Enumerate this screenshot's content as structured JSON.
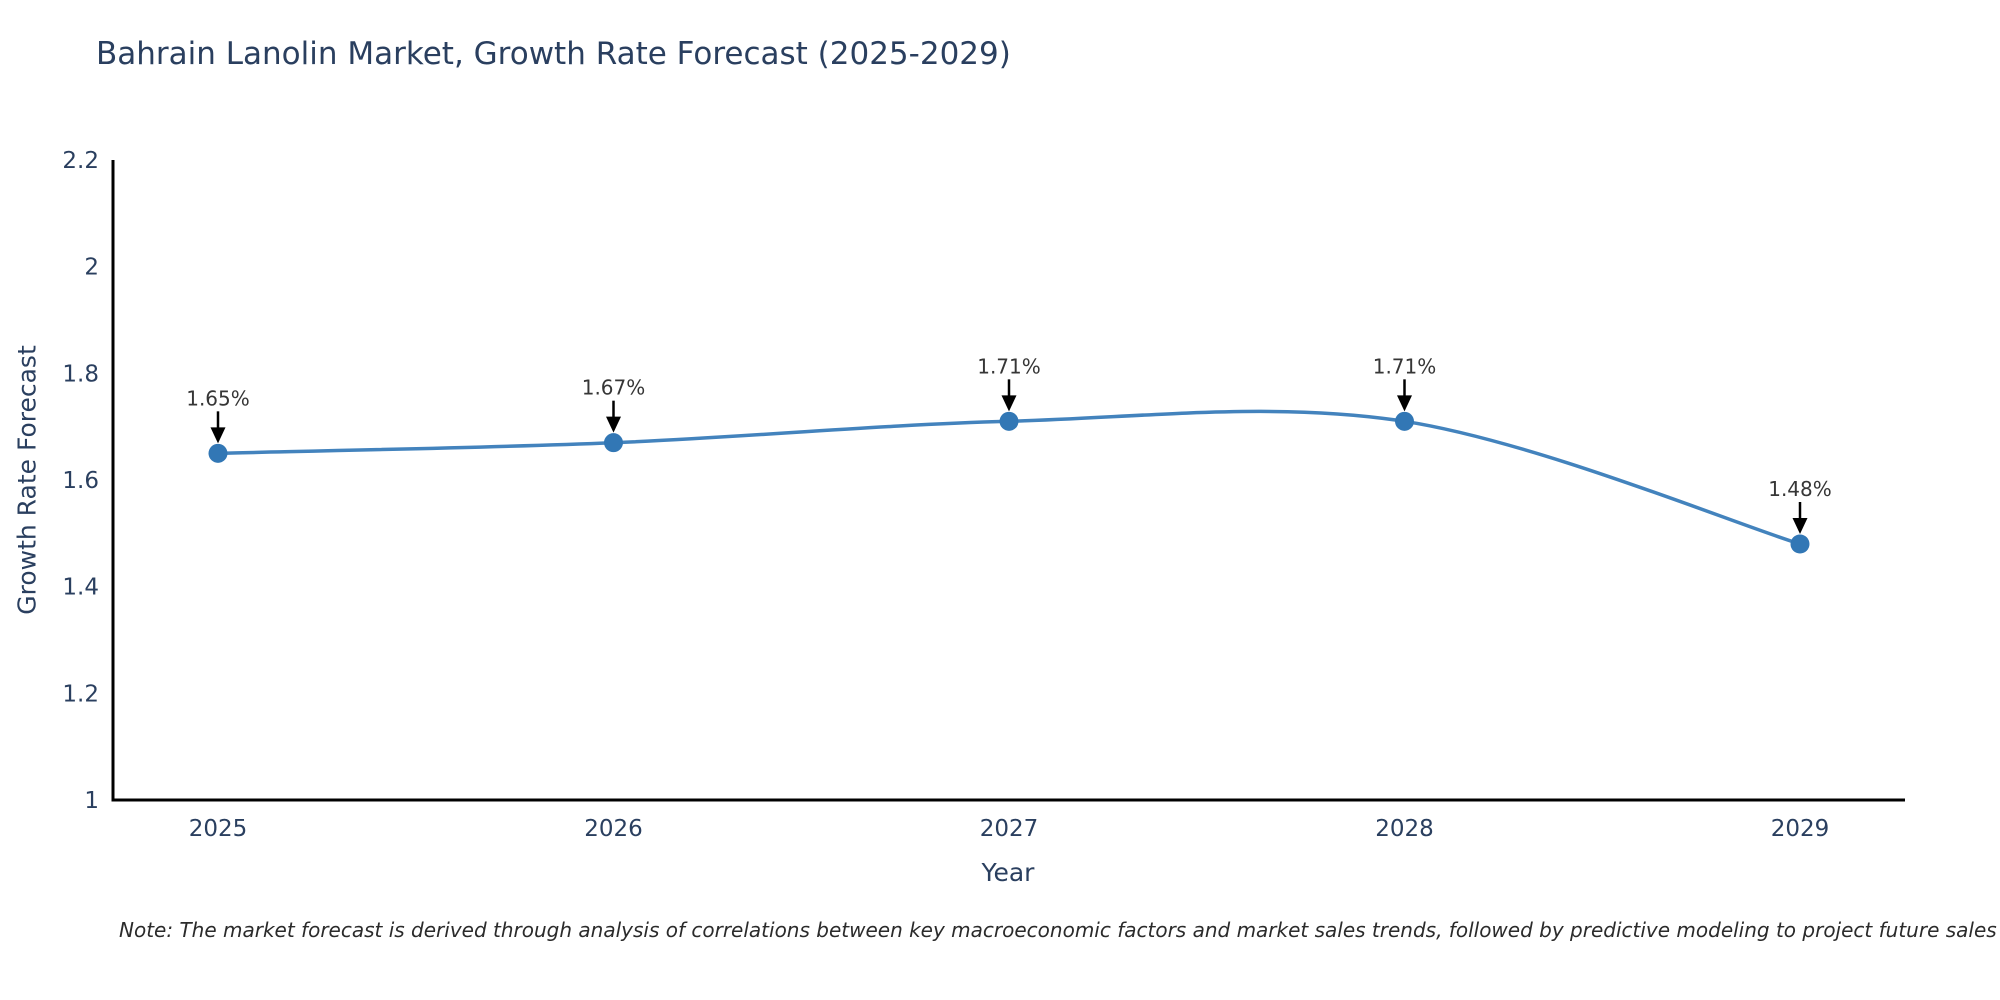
{
  "page": {
    "background": "#ffffff"
  },
  "chart": {
    "title": "Bahrain Lanolin Market, Growth Rate Forecast (2025-2029)",
    "xlabel": "Year",
    "ylabel": "Growth Rate Forecast",
    "note": "Note: The market forecast is derived through analysis of correlations between key macroeconomic factors and market sales trends, followed by predictive modeling to project future sales"
  },
  "chart_data": {
    "type": "line",
    "title": "Bahrain Lanolin Market, Growth Rate Forecast (2025-2029)",
    "xlabel": "Year",
    "ylabel": "Growth Rate Forecast",
    "categories": [
      "2025",
      "2026",
      "2027",
      "2028",
      "2029"
    ],
    "values": [
      1.65,
      1.67,
      1.71,
      1.71,
      1.48
    ],
    "point_labels": [
      "1.65%",
      "1.67%",
      "1.71%",
      "1.71%",
      "1.48%"
    ],
    "ylim": [
      1,
      2.2
    ],
    "yticks": [
      1,
      1.2,
      1.4,
      1.6,
      1.8,
      2,
      2.2
    ],
    "ytick_labels": [
      "1",
      "1.2",
      "1.4",
      "1.6",
      "1.8",
      "2",
      "2.2"
    ],
    "line_shape": "spline",
    "grid": false,
    "legend": false,
    "colors": {
      "line": "#4383bd",
      "marker": "#3277b5",
      "axis": "#000000",
      "tick_text": "#2a3f5f",
      "point_label_text": "#363636",
      "arrow": "#000000"
    }
  }
}
